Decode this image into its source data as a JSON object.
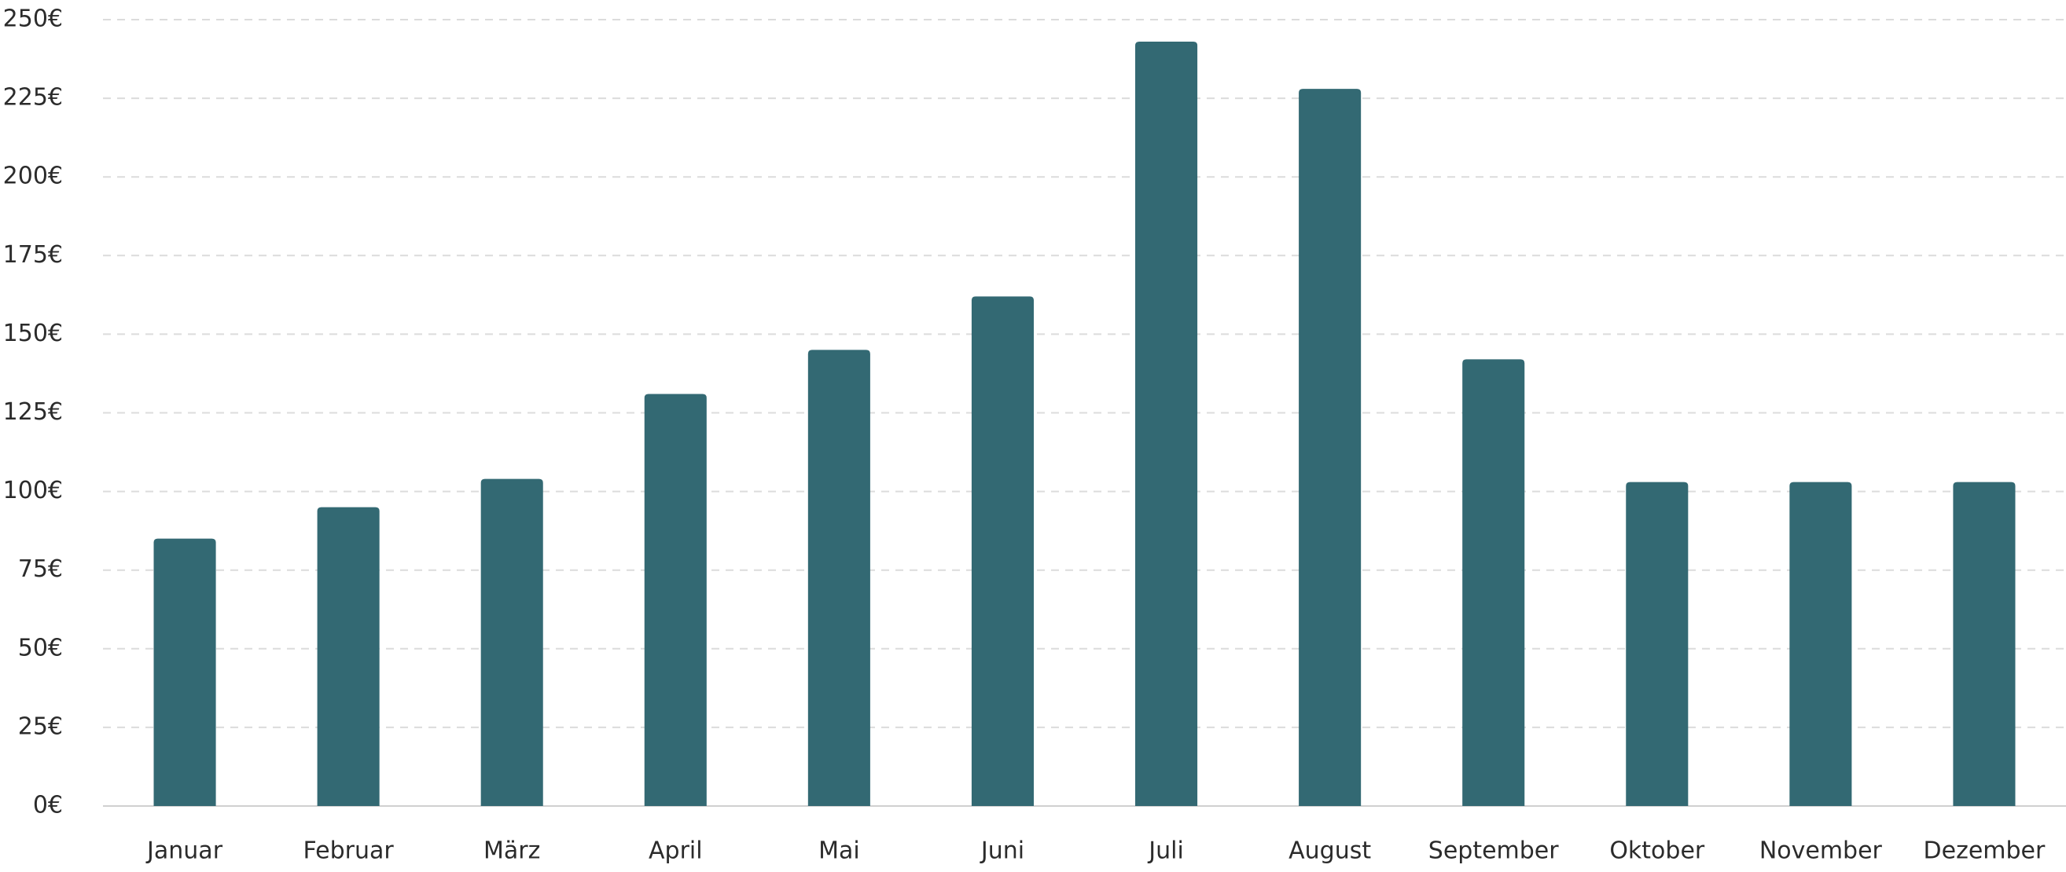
{
  "chart_data": {
    "type": "bar",
    "categories": [
      "Januar",
      "Februar",
      "März",
      "April",
      "Mai",
      "Juni",
      "Juli",
      "August",
      "September",
      "Oktober",
      "November",
      "Dezember"
    ],
    "values": [
      85,
      95,
      104,
      131,
      145,
      162,
      243,
      228,
      142,
      103,
      103,
      103
    ],
    "color": "#336973",
    "ylim": [
      0,
      250
    ],
    "yticks": [
      {
        "value": 0,
        "label": "0€"
      },
      {
        "value": 25,
        "label": "25€"
      },
      {
        "value": 50,
        "label": "50€"
      },
      {
        "value": 75,
        "label": "75€"
      },
      {
        "value": 100,
        "label": "100€"
      },
      {
        "value": 125,
        "label": "125€"
      },
      {
        "value": 150,
        "label": "150€"
      },
      {
        "value": 175,
        "label": "175€"
      },
      {
        "value": 200,
        "label": "200€"
      },
      {
        "value": 225,
        "label": "225€"
      },
      {
        "value": 250,
        "label": "250€"
      }
    ],
    "grid": true
  }
}
